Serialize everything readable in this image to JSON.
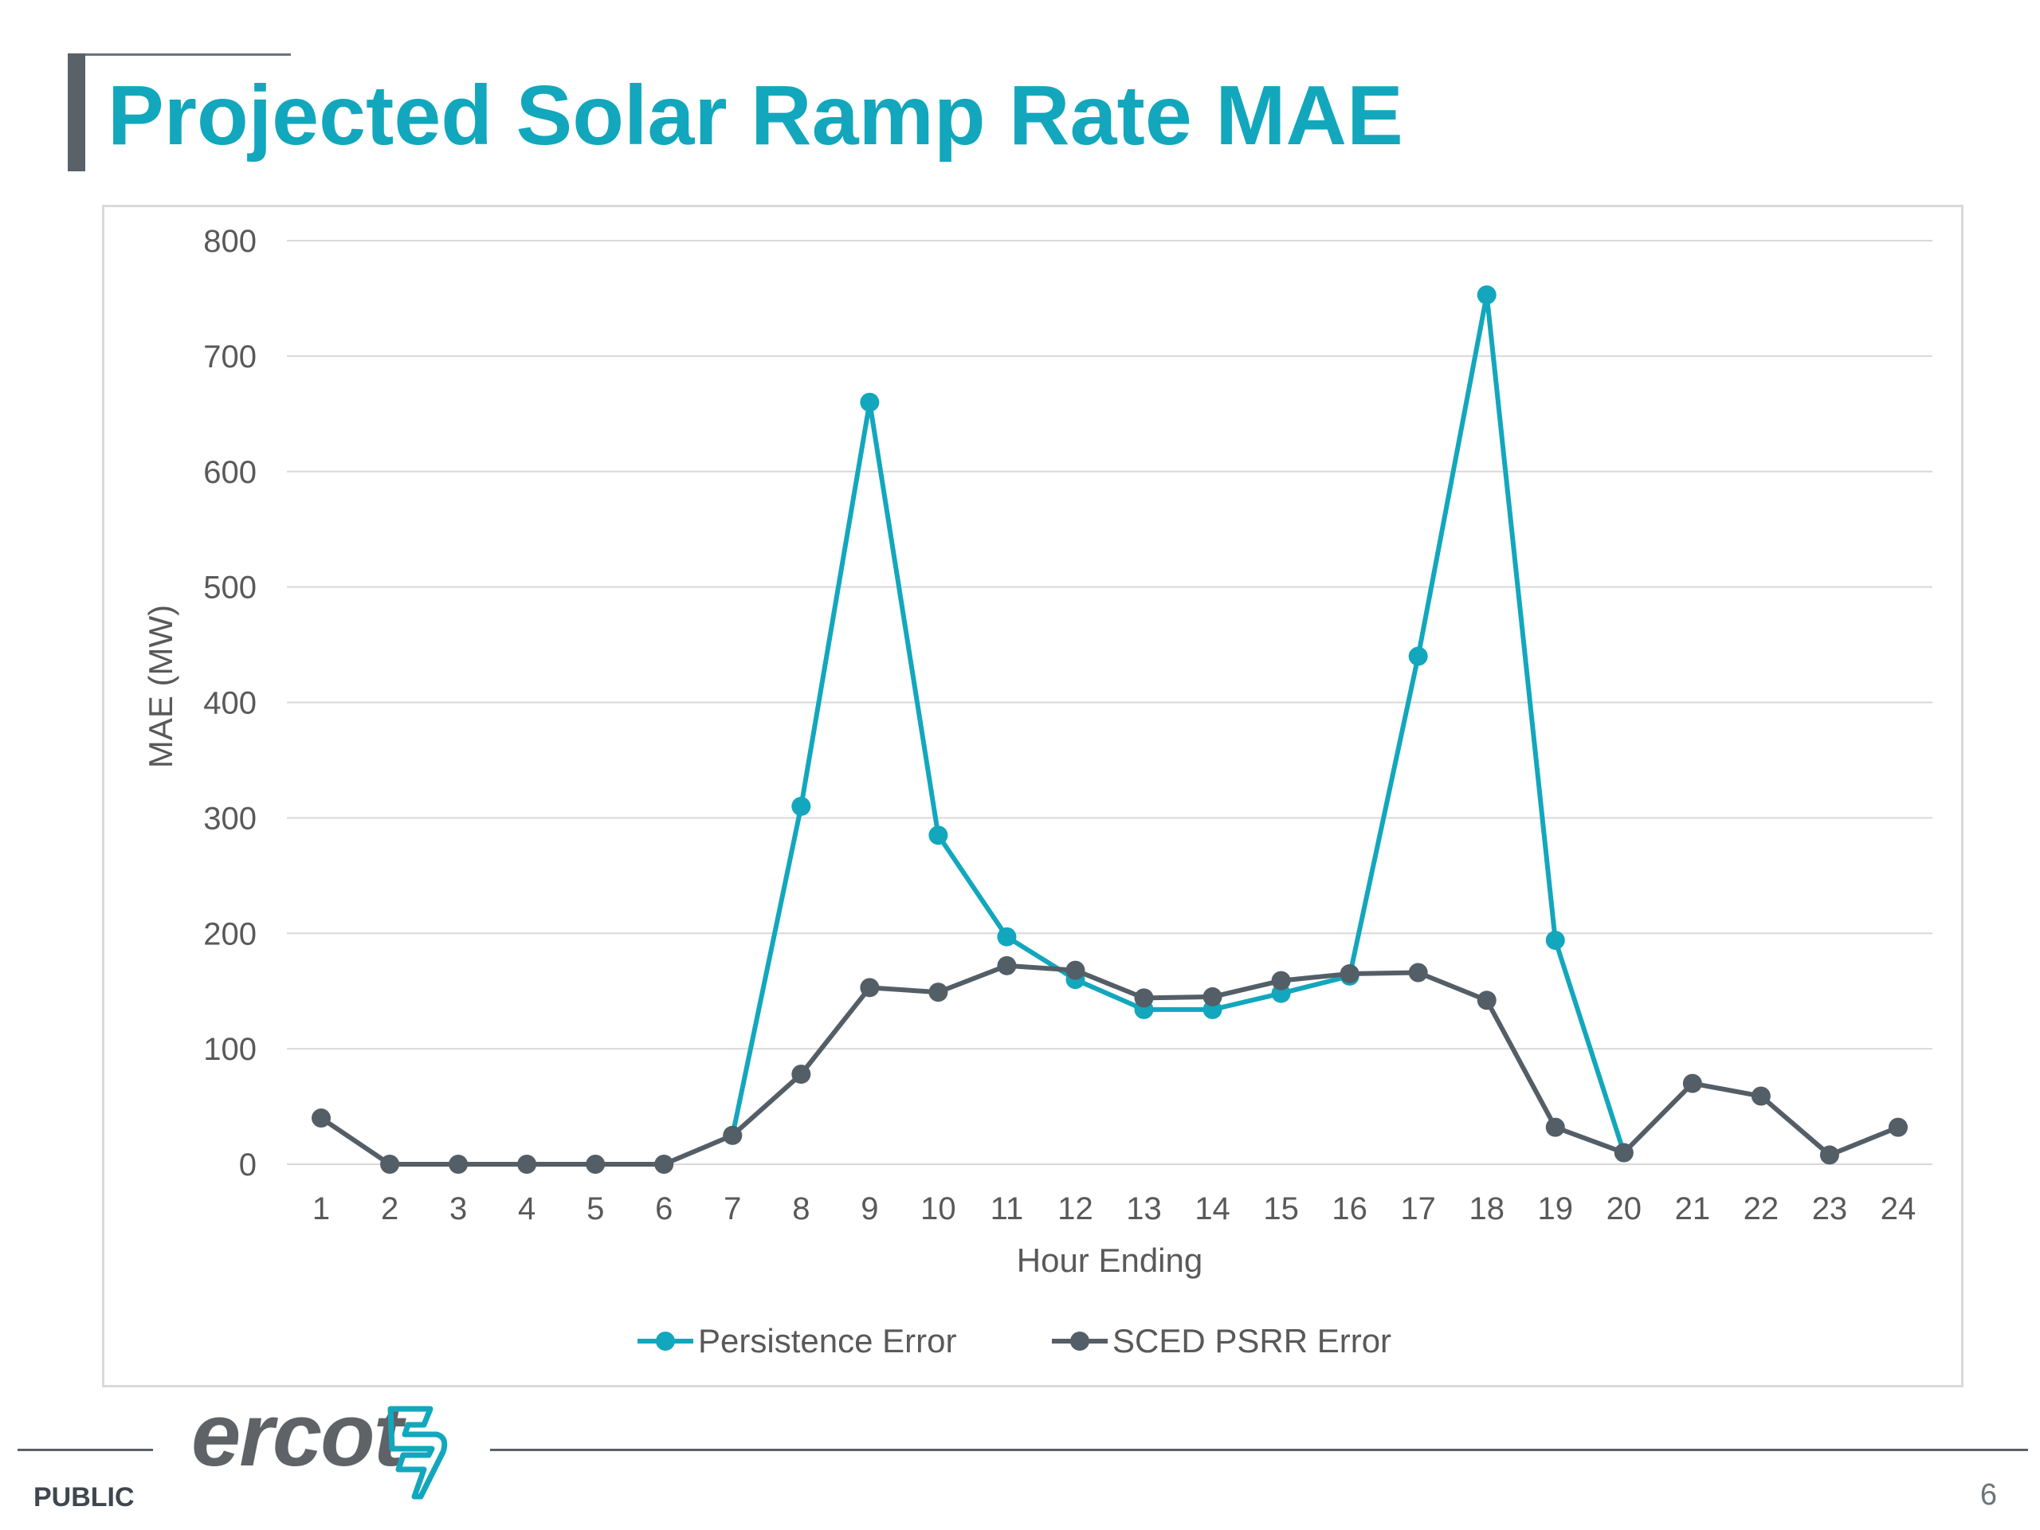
{
  "slide": {
    "title": "Projected Solar Ramp Rate MAE",
    "classification": "PUBLIC",
    "page_number": "6",
    "logo_text": "ercot"
  },
  "colors": {
    "title": "#12a7bd",
    "persistence": "#12a7bd",
    "sced": "#545e66",
    "grid": "#d9d9d9",
    "axis_text": "#595959"
  },
  "chart_data": {
    "type": "line",
    "title": "",
    "xlabel": "Hour Ending",
    "ylabel": "MAE (MW)",
    "ylim": [
      0,
      800
    ],
    "yticks": [
      0,
      100,
      200,
      300,
      400,
      500,
      600,
      700,
      800
    ],
    "grid": true,
    "legend_position": "bottom",
    "categories": [
      "1",
      "2",
      "3",
      "4",
      "5",
      "6",
      "7",
      "8",
      "9",
      "10",
      "11",
      "12",
      "13",
      "14",
      "15",
      "16",
      "17",
      "18",
      "19",
      "20",
      "21",
      "22",
      "23",
      "24"
    ],
    "series": [
      {
        "name": "Persistence Error",
        "color": "#12a7bd",
        "values": [
          null,
          null,
          null,
          null,
          null,
          null,
          25,
          310,
          660,
          285,
          197,
          160,
          134,
          134,
          148,
          163,
          440,
          753,
          194,
          10,
          null,
          null,
          null,
          null
        ]
      },
      {
        "name": "SCED PSRR Error",
        "color": "#545e66",
        "values": [
          40,
          0,
          0,
          0,
          0,
          0,
          25,
          78,
          153,
          149,
          172,
          168,
          144,
          145,
          159,
          165,
          166,
          142,
          32,
          10,
          70,
          59,
          8,
          32
        ]
      }
    ]
  }
}
